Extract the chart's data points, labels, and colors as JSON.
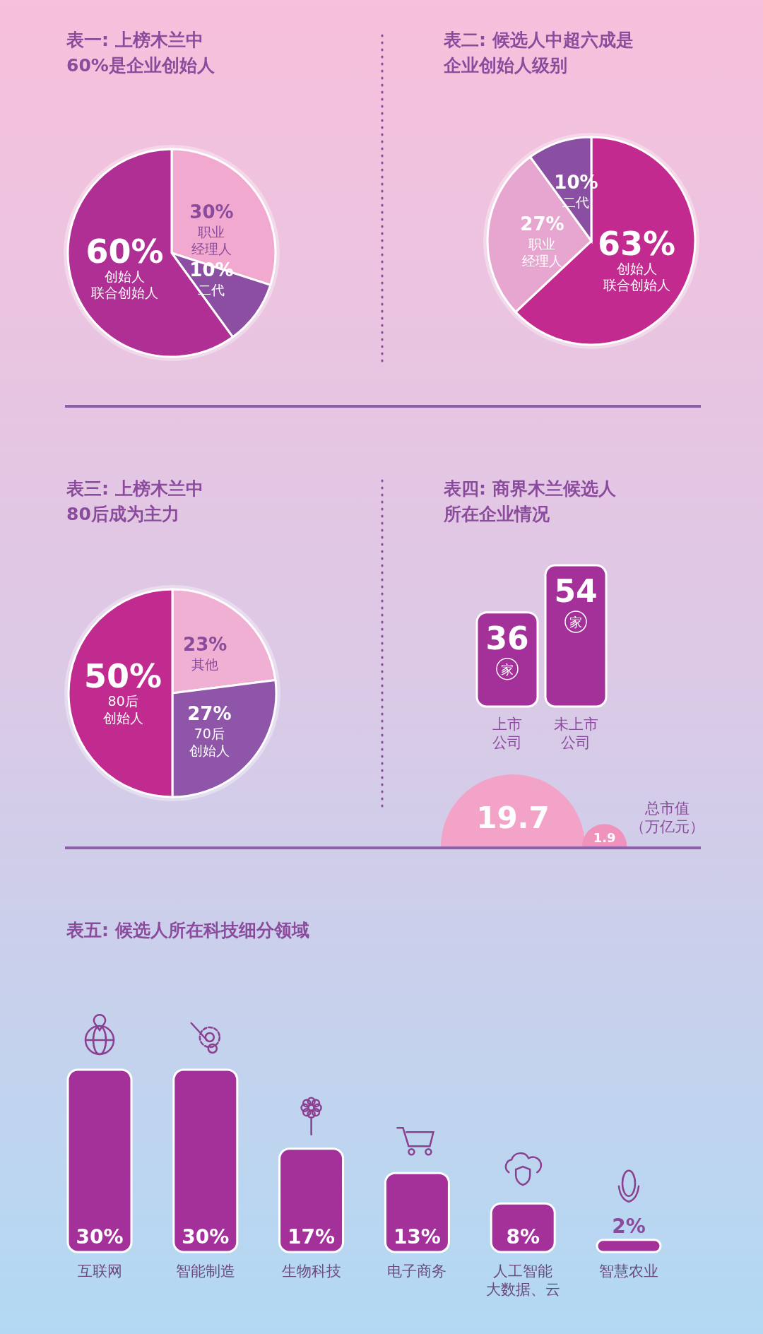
{
  "chart_data": [
    {
      "type": "pie",
      "title": "表一: 上榜木兰中60%是企业创始人",
      "categories": [
        "职业经理人",
        "二代",
        "创始人联合创始人"
      ],
      "values": [
        30,
        10,
        60
      ],
      "colors": [
        "#f2a9cf",
        "#8c4ea3",
        "#b02f95"
      ],
      "value_labels": [
        "30%",
        "10%",
        "60%"
      ],
      "legend": false
    },
    {
      "type": "pie",
      "title": "表二: 候选人中超六成是企业创始人级别",
      "categories": [
        "创始人联合创始人",
        "职业经理人",
        "二代"
      ],
      "values": [
        63,
        27,
        10
      ],
      "colors": [
        "#c22a8f",
        "#e6a6cf",
        "#8a4fa3"
      ],
      "value_labels": [
        "63%",
        "27%",
        "10%"
      ],
      "legend": false
    },
    {
      "type": "pie",
      "title": "表三: 上榜木兰中80后成为主力",
      "categories": [
        "其他",
        "70后创始人",
        "80后创始人"
      ],
      "values": [
        23,
        27,
        50
      ],
      "colors": [
        "#efb0d4",
        "#8e55a8",
        "#c12a8e"
      ],
      "value_labels": [
        "23%",
        "27%",
        "50%"
      ],
      "legend": false
    },
    {
      "type": "bar",
      "title": "表四: 商界木兰候选人所在企业情况",
      "categories": [
        "上市公司",
        "未上市公司"
      ],
      "values": [
        36,
        54
      ],
      "color": "#a4309a",
      "data_labels": true,
      "annotations": [
        "家",
        "家"
      ]
    },
    {
      "type": "other",
      "ylabel": "总市值（万亿元）",
      "categories": [
        null,
        null
      ],
      "values": [
        19.7,
        1.9
      ],
      "colors": [
        "#f3a3c8",
        "#ef93bd"
      ],
      "data_labels": true
    },
    {
      "type": "bar",
      "title": "表五: 候选人所在科技细分领域",
      "categories": [
        "互联网",
        "智能制造",
        "生物科技",
        "电子商务",
        "人工智能大数据、云",
        "智慧农业"
      ],
      "values": [
        30,
        30,
        17,
        13,
        8,
        2
      ],
      "color": "#a4309a",
      "value_labels": [
        "30%",
        "30%",
        "17%",
        "13%",
        "8%",
        "2%"
      ]
    }
  ]
}
